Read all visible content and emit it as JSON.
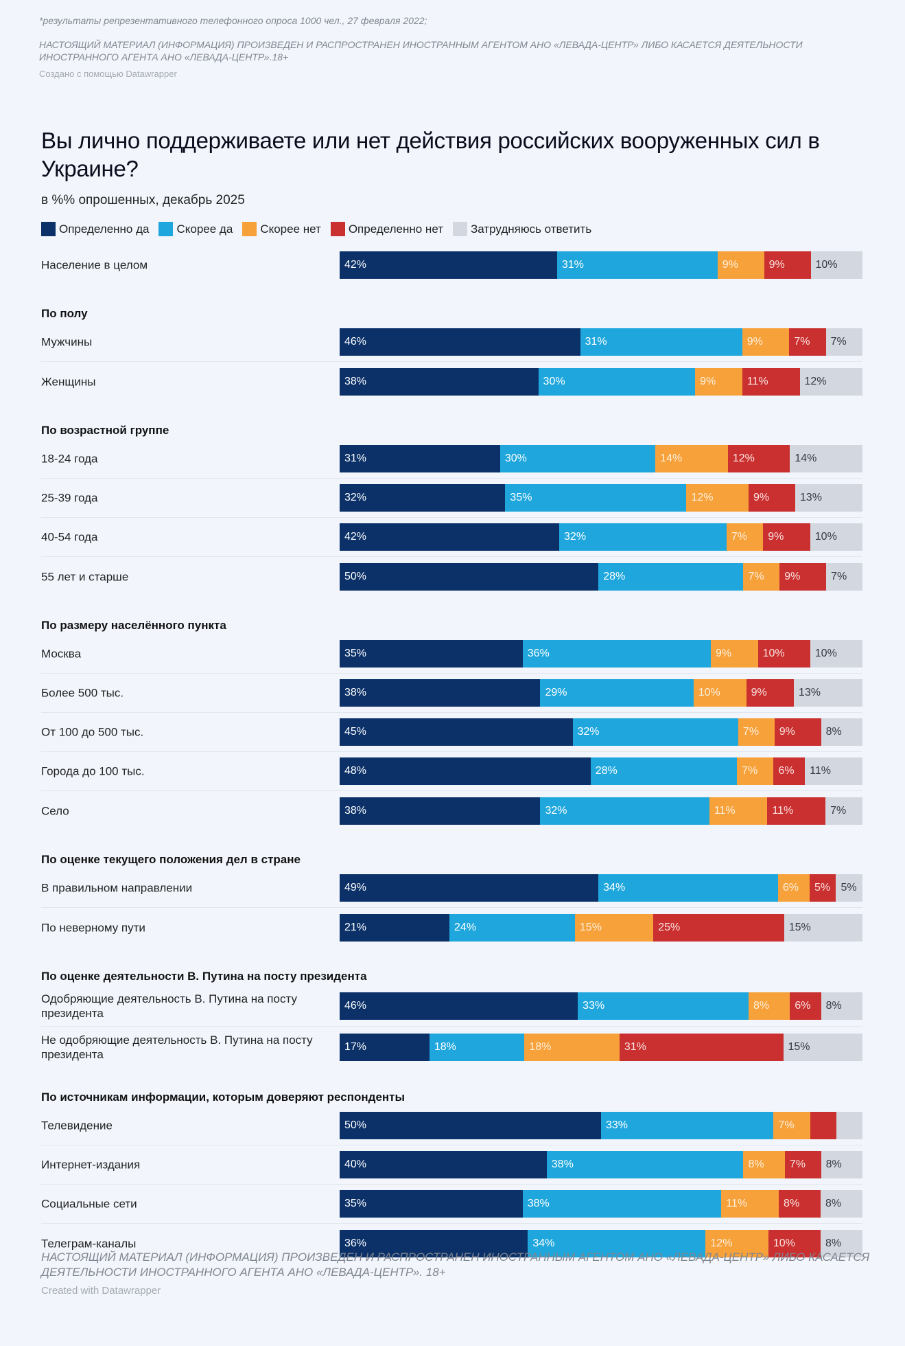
{
  "header_note": "*результаты репрезентативного телефонного опроса 1000 чел., 27 февраля 2022;",
  "header_disclaimer": "НАСТОЯЩИЙ МАТЕРИАЛ (ИНФОРМАЦИЯ) ПРОИЗВЕДЕН И РАСПРОСТРАНЕН ИНОСТРАННЫМ АГЕНТОМ АНО «ЛЕВАДА-ЦЕНТР» ЛИБО КАСАЕТСЯ ДЕЯТЕЛЬНОСТИ ИНОСТРАННОГО АГЕНТА АНО «ЛЕВАДА-ЦЕНТР».18+",
  "header_credit": "Создано с помощью Datawrapper",
  "footer_disclaimer": "НАСТОЯЩИЙ МАТЕРИАЛ (ИНФОРМАЦИЯ) ПРОИЗВЕДЕН И РАСПРОСТРАНЕН ИНОСТРАННЫМ АГЕНТОМ АНО «ЛЕВАДА-ЦЕНТР» ЛИБО КАСАЕТСЯ ДЕЯТЕЛЬНОСТИ ИНОСТРАННОГО АГЕНТА АНО «ЛЕВАДА-ЦЕНТР». 18+",
  "footer_credit": "Created with Datawrapper",
  "chart_data": {
    "type": "bar",
    "orientation": "horizontal-stacked-100",
    "title": "Вы лично поддерживаете или нет действия российских вооруженных сил в Украине?",
    "subtitle": "в %% опрошенных, декабрь 2025",
    "legend_position": "top",
    "series": [
      {
        "name": "Определенно да",
        "color": "#0b3168",
        "text_color": "#ffffff"
      },
      {
        "name": "Скорее да",
        "color": "#1fa7dd",
        "text_color": "#ffffff"
      },
      {
        "name": "Скорее нет",
        "color": "#f7a13b",
        "text_color": "#fdf0dc"
      },
      {
        "name": "Определенно нет",
        "color": "#c9302f",
        "text_color": "#fbe3e3"
      },
      {
        "name": "Затрудняюсь ответить",
        "color": "#d3d7df",
        "text_color": "#333a45"
      }
    ],
    "groups": [
      {
        "title": "",
        "rows": [
          {
            "label": "Население в целом",
            "values": [
              42,
              31,
              9,
              9,
              10
            ]
          }
        ]
      },
      {
        "title": "По полу",
        "rows": [
          {
            "label": "Мужчины",
            "values": [
              46,
              31,
              9,
              7,
              7
            ]
          },
          {
            "label": "Женщины",
            "values": [
              38,
              30,
              9,
              11,
              12
            ]
          }
        ]
      },
      {
        "title": "По возрастной группе",
        "rows": [
          {
            "label": "18-24 года",
            "values": [
              31,
              30,
              14,
              12,
              14
            ]
          },
          {
            "label": "25-39 года",
            "values": [
              32,
              35,
              12,
              9,
              13
            ]
          },
          {
            "label": "40-54 года",
            "values": [
              42,
              32,
              7,
              9,
              10
            ]
          },
          {
            "label": "55 лет и старше",
            "values": [
              50,
              28,
              7,
              9,
              7
            ]
          }
        ]
      },
      {
        "title": "По размеру населённого пункта",
        "rows": [
          {
            "label": "Москва",
            "values": [
              35,
              36,
              9,
              10,
              10
            ]
          },
          {
            "label": "Более 500 тыс.",
            "values": [
              38,
              29,
              10,
              9,
              13
            ]
          },
          {
            "label": "От 100 до 500 тыс.",
            "values": [
              45,
              32,
              7,
              9,
              8
            ]
          },
          {
            "label": "Города до 100 тыс.",
            "values": [
              48,
              28,
              7,
              6,
              11
            ]
          },
          {
            "label": "Село",
            "values": [
              38,
              32,
              11,
              11,
              7
            ]
          }
        ]
      },
      {
        "title": "По оценке текущего положения дел в стране",
        "rows": [
          {
            "label": "В правильном направлении",
            "values": [
              49,
              34,
              6,
              5,
              5
            ]
          },
          {
            "label": "По неверному пути",
            "values": [
              21,
              24,
              15,
              25,
              15
            ]
          }
        ]
      },
      {
        "title": "По оценке деятельности В. Путина на посту президента",
        "rows": [
          {
            "label": "Одобряющие деятельность В. Путина на посту президента",
            "values": [
              46,
              33,
              8,
              6,
              8
            ]
          },
          {
            "label": "Не одобряющие деятельность В. Путина на посту президента",
            "values": [
              17,
              18,
              18,
              31,
              15
            ]
          }
        ]
      },
      {
        "title": "По источникам информации, которым доверяют респонденты",
        "rows": [
          {
            "label": "Телевидение",
            "values": [
              50,
              33,
              7,
              5,
              5
            ],
            "hidden_labels": [
              3,
              4
            ]
          },
          {
            "label": "Интернет-издания",
            "values": [
              40,
              38,
              8,
              7,
              8
            ]
          },
          {
            "label": "Социальные сети",
            "values": [
              35,
              38,
              11,
              8,
              8
            ]
          },
          {
            "label": "Телеграм-каналы",
            "values": [
              36,
              34,
              12,
              10,
              8
            ]
          }
        ]
      }
    ]
  }
}
